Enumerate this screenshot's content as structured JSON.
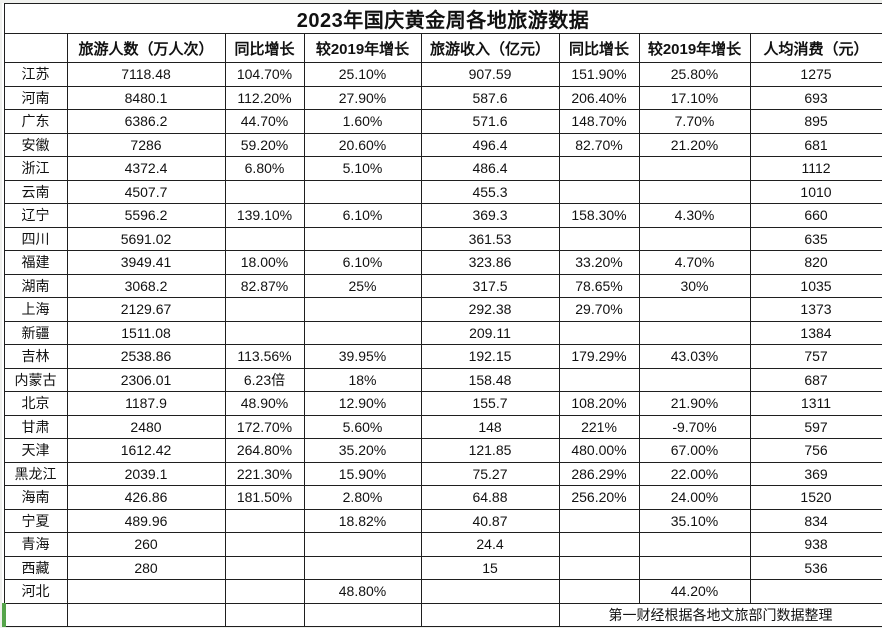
{
  "table": {
    "title": "2023年国庆黄金周各地旅游数据",
    "columns": [
      "",
      "旅游人数（万人次）",
      "同比增长",
      "较2019年增长",
      "旅游收入（亿元）",
      "同比增长",
      "较2019年增长",
      "人均消费（元）"
    ],
    "rows": [
      [
        "江苏",
        "7118.48",
        "104.70%",
        "25.10%",
        "907.59",
        "151.90%",
        "25.80%",
        "1275"
      ],
      [
        "河南",
        "8480.1",
        "112.20%",
        "27.90%",
        "587.6",
        "206.40%",
        "17.10%",
        "693"
      ],
      [
        "广东",
        "6386.2",
        "44.70%",
        "1.60%",
        "571.6",
        "148.70%",
        "7.70%",
        "895"
      ],
      [
        "安徽",
        "7286",
        "59.20%",
        "20.60%",
        "496.4",
        "82.70%",
        "21.20%",
        "681"
      ],
      [
        "浙江",
        "4372.4",
        "6.80%",
        "5.10%",
        "486.4",
        "",
        "",
        "1112"
      ],
      [
        "云南",
        "4507.7",
        "",
        "",
        "455.3",
        "",
        "",
        "1010"
      ],
      [
        "辽宁",
        "5596.2",
        "139.10%",
        "6.10%",
        "369.3",
        "158.30%",
        "4.30%",
        "660"
      ],
      [
        "四川",
        "5691.02",
        "",
        "",
        "361.53",
        "",
        "",
        "635"
      ],
      [
        "福建",
        "3949.41",
        "18.00%",
        "6.10%",
        "323.86",
        "33.20%",
        "4.70%",
        "820"
      ],
      [
        "湖南",
        "3068.2",
        "82.87%",
        "25%",
        "317.5",
        "78.65%",
        "30%",
        "1035"
      ],
      [
        "上海",
        "2129.67",
        "",
        "",
        "292.38",
        "29.70%",
        "",
        "1373"
      ],
      [
        "新疆",
        "1511.08",
        "",
        "",
        "209.11",
        "",
        "",
        "1384"
      ],
      [
        "吉林",
        "2538.86",
        "113.56%",
        "39.95%",
        "192.15",
        "179.29%",
        "43.03%",
        "757"
      ],
      [
        "内蒙古",
        "2306.01",
        "6.23倍",
        "18%",
        "158.48",
        "",
        "",
        "687"
      ],
      [
        "北京",
        "1187.9",
        "48.90%",
        "12.90%",
        "155.7",
        "108.20%",
        "21.90%",
        "1311"
      ],
      [
        "甘肃",
        "2480",
        "172.70%",
        "5.60%",
        "148",
        "221%",
        "-9.70%",
        "597"
      ],
      [
        "天津",
        "1612.42",
        "264.80%",
        "35.20%",
        "121.85",
        "480.00%",
        "67.00%",
        "756"
      ],
      [
        "黑龙江",
        "2039.1",
        "221.30%",
        "15.90%",
        "75.27",
        "286.29%",
        "22.00%",
        "369"
      ],
      [
        "海南",
        "426.86",
        "181.50%",
        "2.80%",
        "64.88",
        "256.20%",
        "24.00%",
        "1520"
      ],
      [
        "宁夏",
        "489.96",
        "",
        "18.82%",
        "40.87",
        "",
        "35.10%",
        "834"
      ],
      [
        "青海",
        "260",
        "",
        "",
        "24.4",
        "",
        "",
        "938"
      ],
      [
        "西藏",
        "280",
        "",
        "",
        "15",
        "",
        "",
        "536"
      ],
      [
        "河北",
        "",
        "",
        "48.80%",
        "",
        "",
        "44.20%",
        ""
      ]
    ],
    "source_note": "第一财经根据各地文旅部门数据整理"
  },
  "colors": {
    "grid_border": "#1f1f1f",
    "active_cell_green": "#55a44a",
    "canvas_background": "#f0f1ee",
    "cell_background": "#ffffff",
    "text": "#111111"
  }
}
